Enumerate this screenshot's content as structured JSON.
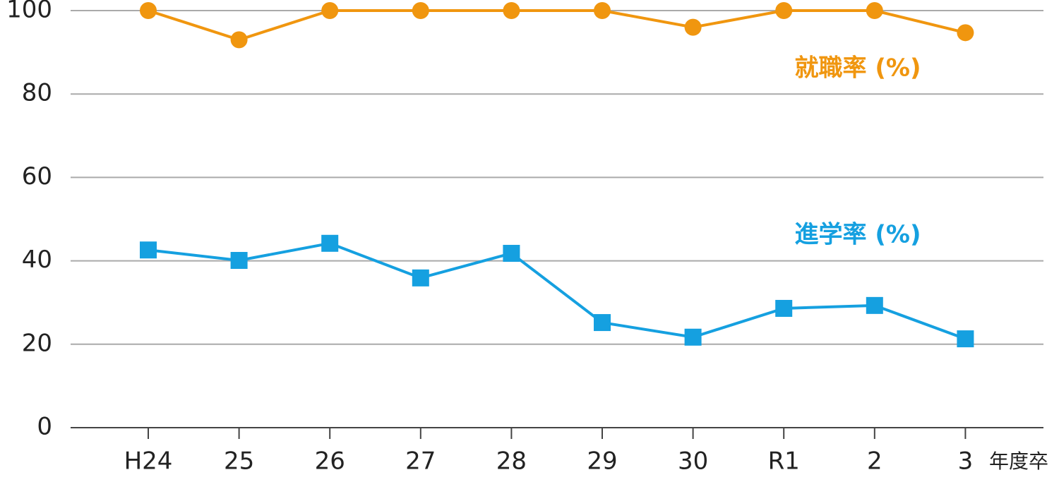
{
  "chart_data": {
    "type": "line",
    "categories": [
      "H24",
      "25",
      "26",
      "27",
      "28",
      "29",
      "30",
      "R1",
      "2",
      "3"
    ],
    "x_label": "年度卒",
    "series": [
      {
        "name": "就職率 (%)",
        "color": "#f0960f",
        "marker": "circle",
        "values": [
          100,
          93,
          100,
          100,
          100,
          100,
          96,
          100,
          100,
          94.7
        ]
      },
      {
        "name": "進学率 (%)",
        "color": "#15a0e0",
        "marker": "square",
        "values": [
          42.6,
          40.1,
          44.2,
          35.9,
          41.8,
          25.2,
          21.7,
          28.6,
          29.3,
          21.3
        ]
      }
    ],
    "ylim": [
      0,
      100
    ],
    "yticks": [
      0,
      20,
      40,
      60,
      80,
      100
    ],
    "grid": true
  }
}
